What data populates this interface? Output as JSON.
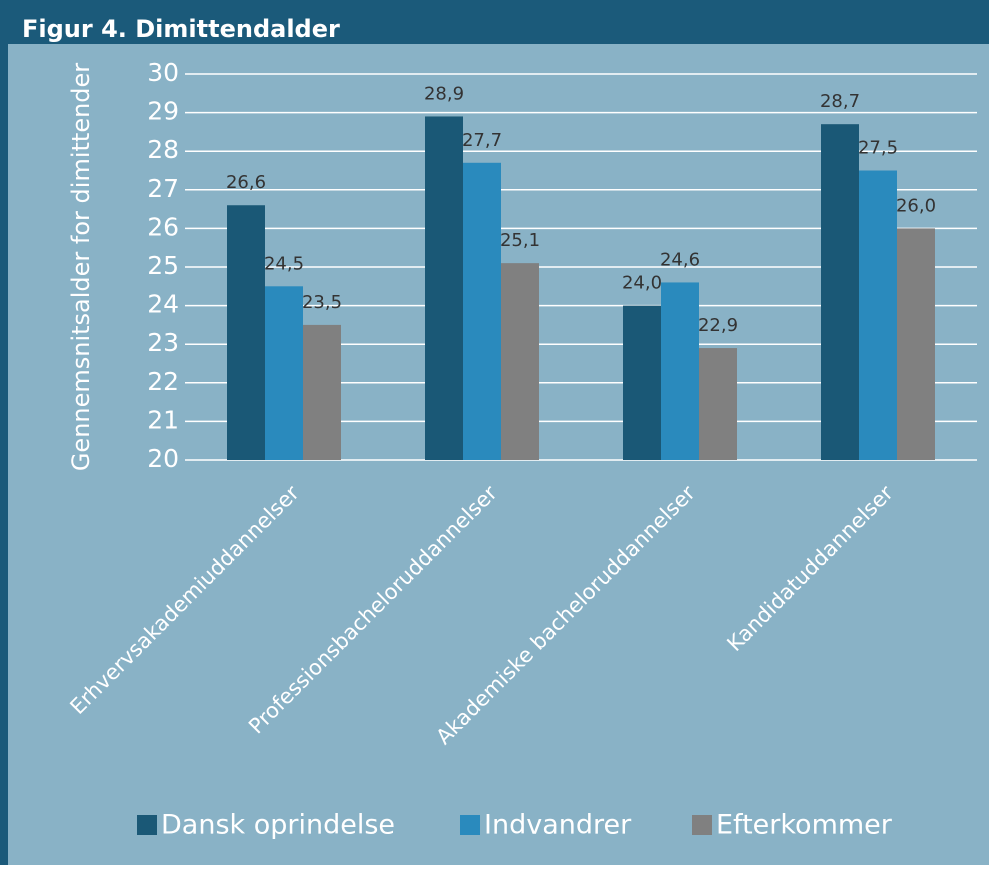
{
  "chart_data": {
    "type": "bar",
    "title": "Figur 4. Dimittendalder",
    "y_label": "Gennemsnitsalder for dimittender",
    "categories": [
      "Erhvervsakademiuddannelser",
      "Professionsbacheloruddannelser",
      "Akademiske bacheloruddannelser",
      "Kandidatuddannelser"
    ],
    "series": [
      {
        "name": "Dansk oprindelse",
        "color": "#1a5876",
        "values": [
          26.6,
          28.9,
          24.0,
          28.7
        ],
        "value_labels": [
          "26,6",
          "28,9",
          "24,0",
          "28,7"
        ]
      },
      {
        "name": "Indvandrer",
        "color": "#2a8abd",
        "values": [
          24.5,
          27.7,
          24.6,
          27.5
        ],
        "value_labels": [
          "24,5",
          "27,7",
          "24,6",
          "27,5"
        ]
      },
      {
        "name": "Efterkommer",
        "color": "#808080",
        "values": [
          23.5,
          25.1,
          22.9,
          26.0
        ],
        "value_labels": [
          "23,5",
          "25,1",
          "22,9",
          "26,0"
        ]
      }
    ],
    "ylim": [
      20,
      30
    ],
    "yticks": [
      20,
      21,
      22,
      23,
      24,
      25,
      26,
      27,
      28,
      29,
      30
    ],
    "grid": true,
    "legend": "bottom"
  }
}
